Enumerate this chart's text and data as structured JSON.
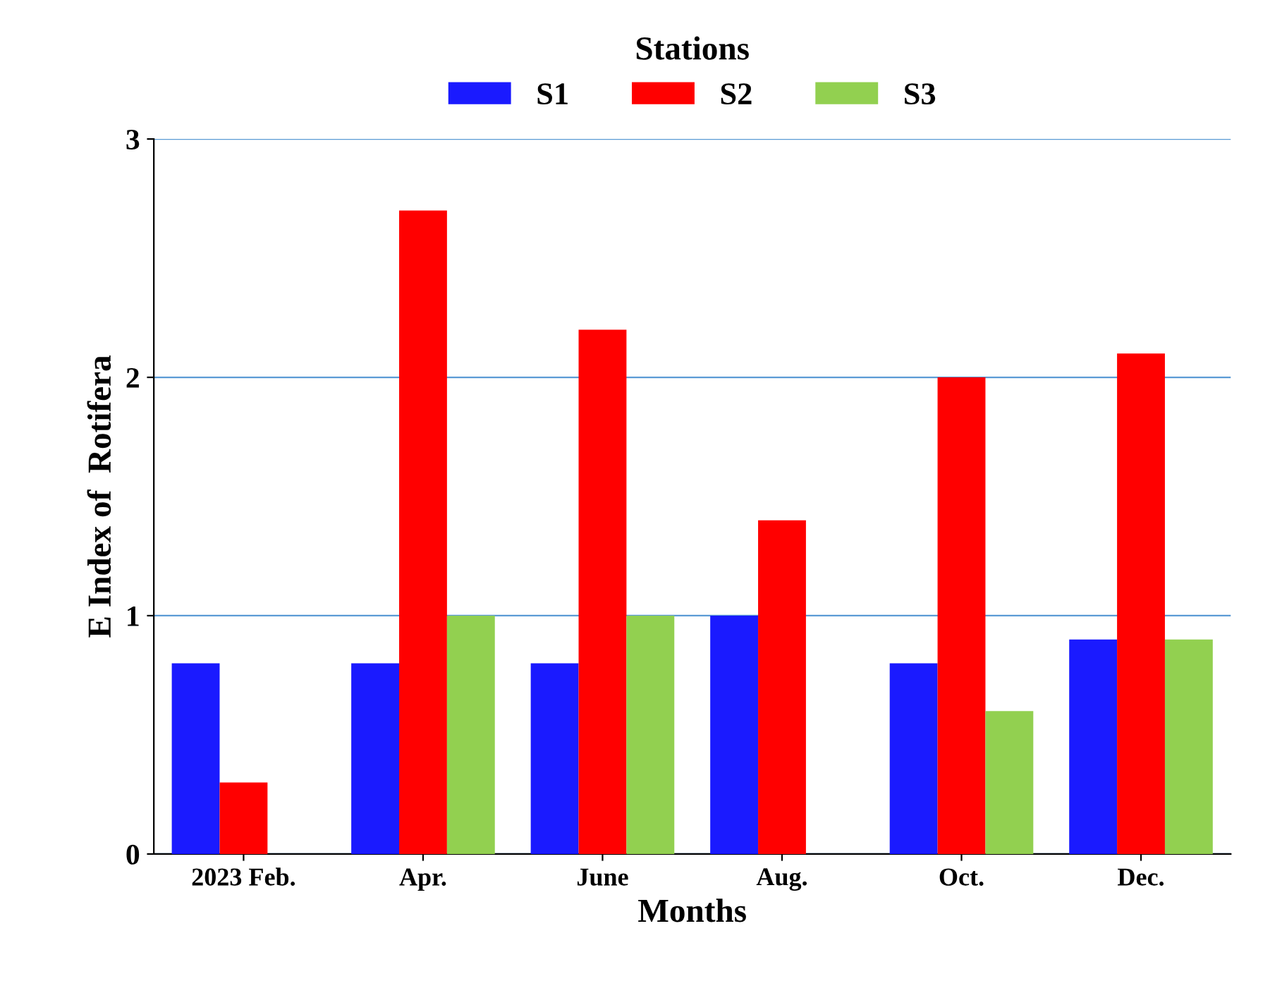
{
  "chart_data": {
    "type": "bar",
    "xlabel": "Months",
    "ylabel": "E Index of  Rotifera",
    "legend_title": "Stations",
    "categories": [
      "2023 Feb.",
      "Apr.",
      "June",
      "Aug.",
      "Oct.",
      "Dec."
    ],
    "series": [
      {
        "name": "S1",
        "color": "#1a1aff",
        "values": [
          0.8,
          0.8,
          0.8,
          1.0,
          0.8,
          0.9
        ]
      },
      {
        "name": "S2",
        "color": "#ff0000",
        "values": [
          0.3,
          2.7,
          2.2,
          1.4,
          2.0,
          2.1
        ]
      },
      {
        "name": "S3",
        "color": "#92d050",
        "values": [
          null,
          1.0,
          1.0,
          null,
          0.6,
          0.9
        ]
      }
    ],
    "ylim": [
      0,
      3
    ],
    "yticks": [
      0,
      1,
      2,
      3
    ],
    "grid": "y",
    "legend": "top"
  }
}
